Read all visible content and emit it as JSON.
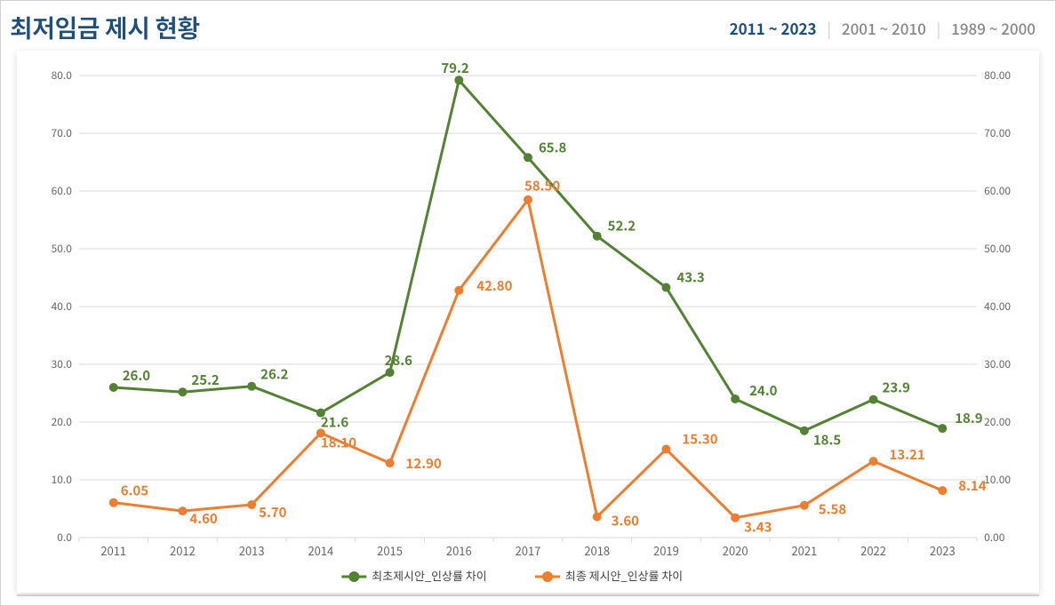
{
  "header": {
    "title": "최저임금 제시 현황",
    "tabs": [
      {
        "label": "2011 ~ 2023",
        "active": true
      },
      {
        "label": "2001 ~ 2010",
        "active": false
      },
      {
        "label": "1989 ~ 2000",
        "active": false
      }
    ]
  },
  "chart": {
    "type": "line",
    "background_color": "#ffffff",
    "grid_color": "#d9d9d9",
    "axis_text_color": "#666666",
    "categories": [
      "2011",
      "2012",
      "2013",
      "2014",
      "2015",
      "2016",
      "2017",
      "2018",
      "2019",
      "2020",
      "2021",
      "2022",
      "2023"
    ],
    "y_left": {
      "min": 0,
      "max": 80,
      "step": 10,
      "decimals": 1
    },
    "y_right": {
      "min": 0,
      "max": 80,
      "step": 10,
      "decimals": 2
    },
    "series": [
      {
        "name": "최초제시안_인상률 차이",
        "color": "#548235",
        "line_width": 3,
        "marker": "circle",
        "marker_size": 5,
        "label_decimals": 1,
        "values": [
          26.0,
          25.2,
          26.2,
          21.6,
          28.6,
          79.2,
          65.8,
          52.2,
          43.3,
          24.0,
          18.5,
          23.9,
          18.9
        ],
        "label_offsets": [
          {
            "dx": 10,
            "dy": -8
          },
          {
            "dx": 10,
            "dy": -8
          },
          {
            "dx": 10,
            "dy": -8
          },
          {
            "dx": 0,
            "dy": 16
          },
          {
            "dx": -6,
            "dy": -8
          },
          {
            "dx": -20,
            "dy": -8
          },
          {
            "dx": 12,
            "dy": -6
          },
          {
            "dx": 12,
            "dy": -6
          },
          {
            "dx": 12,
            "dy": -6
          },
          {
            "dx": 16,
            "dy": -4
          },
          {
            "dx": 10,
            "dy": 16
          },
          {
            "dx": 10,
            "dy": -8
          },
          {
            "dx": 14,
            "dy": -6
          }
        ]
      },
      {
        "name": "최종 제시안_인상률 차이",
        "color": "#ed7d31",
        "line_width": 3,
        "marker": "circle",
        "marker_size": 5,
        "label_decimals": 2,
        "values": [
          6.05,
          4.6,
          5.7,
          18.1,
          12.9,
          42.8,
          58.5,
          3.6,
          15.3,
          3.43,
          5.58,
          13.21,
          8.14
        ],
        "label_offsets": [
          {
            "dx": 8,
            "dy": -8
          },
          {
            "dx": 8,
            "dy": 14
          },
          {
            "dx": 8,
            "dy": 14
          },
          {
            "dx": 0,
            "dy": 16
          },
          {
            "dx": 18,
            "dy": 6
          },
          {
            "dx": 20,
            "dy": 0
          },
          {
            "dx": -4,
            "dy": -10
          },
          {
            "dx": 16,
            "dy": 10
          },
          {
            "dx": 18,
            "dy": -6
          },
          {
            "dx": 10,
            "dy": 16
          },
          {
            "dx": 16,
            "dy": 10
          },
          {
            "dx": 18,
            "dy": -2
          },
          {
            "dx": 18,
            "dy": 0
          }
        ]
      }
    ],
    "legend": {
      "position": "bottom",
      "marker_size": 6
    },
    "label_fontsize": 15,
    "axis_fontsize": 12
  }
}
